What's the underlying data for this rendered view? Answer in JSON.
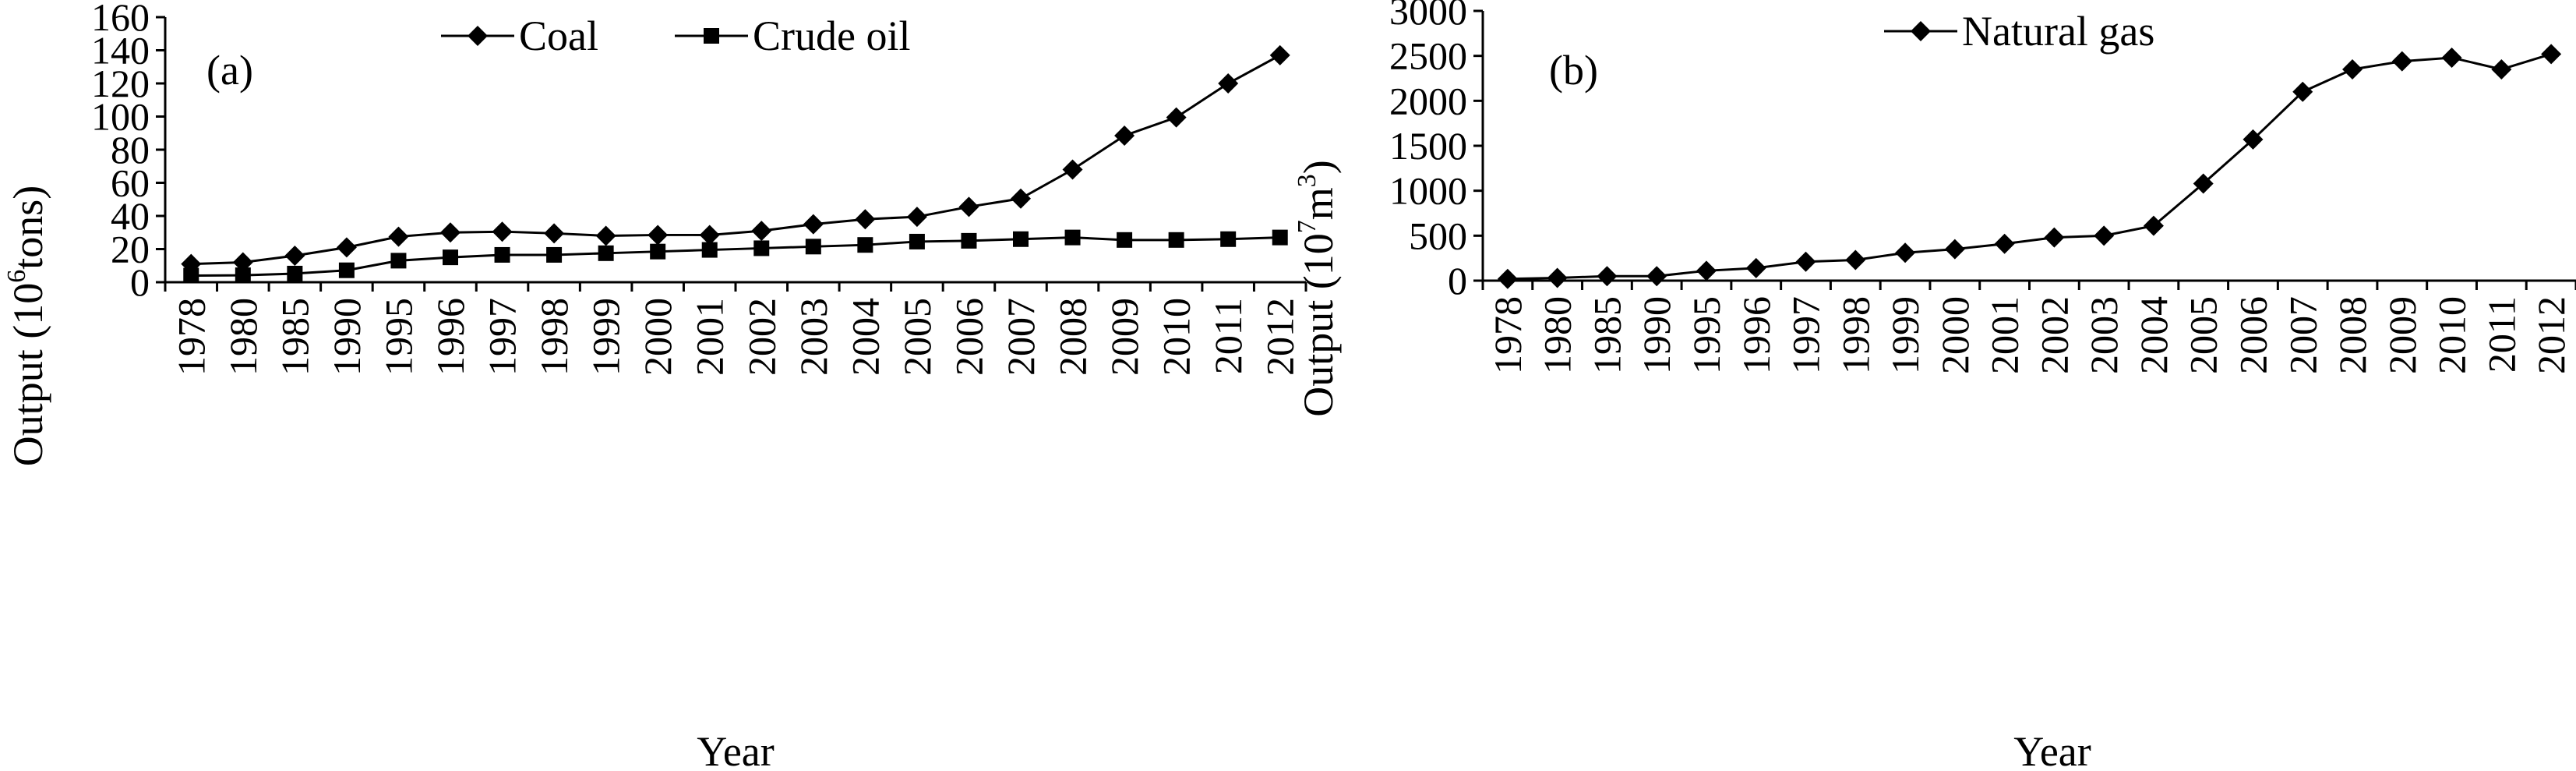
{
  "chart_data": [
    {
      "type": "line",
      "panel_label": "(a)",
      "categories": [
        "1978",
        "1980",
        "1985",
        "1990",
        "1995",
        "1996",
        "1997",
        "1998",
        "1999",
        "2000",
        "2001",
        "2002",
        "2003",
        "2004",
        "2005",
        "2006",
        "2007",
        "2008",
        "2009",
        "2010",
        "2011",
        "2012"
      ],
      "series": [
        {
          "name": "Coal",
          "marker": "diamond",
          "values": [
            11,
            12,
            16,
            21,
            27.5,
            30,
            30.5,
            29.5,
            28,
            28.5,
            28.5,
            31,
            35,
            38,
            39.5,
            45.5,
            50.5,
            68,
            88.5,
            99.5,
            120,
            137
          ]
        },
        {
          "name": "Crude oil",
          "marker": "square",
          "values": [
            4,
            4.2,
            5.2,
            7.2,
            13,
            15,
            16.5,
            16.5,
            17.5,
            18.5,
            19.5,
            20.5,
            21.5,
            22.5,
            24.5,
            25,
            26,
            27,
            25.5,
            25.5,
            26,
            27
          ]
        }
      ],
      "xlabel": "Year",
      "ylabel_main": "Output  (10",
      "ylabel_sup": "6",
      "ylabel_tail": "tons)",
      "ylim": [
        0,
        160
      ],
      "yticks": [
        "0",
        "20",
        "40",
        "60",
        "80",
        "100",
        "120",
        "140",
        "160"
      ],
      "grid": false,
      "legend": "top"
    },
    {
      "type": "line",
      "panel_label": "(b)",
      "categories": [
        "1978",
        "1980",
        "1985",
        "1990",
        "1995",
        "1996",
        "1997",
        "1998",
        "1999",
        "2000",
        "2001",
        "2002",
        "2003",
        "2004",
        "2005",
        "2006",
        "2007",
        "2008",
        "2009",
        "2010",
        "2011",
        "2012"
      ],
      "series": [
        {
          "name": "Natural gas",
          "marker": "diamond",
          "values": [
            20,
            30,
            50,
            50,
            110,
            140,
            210,
            230,
            310,
            350,
            410,
            480,
            500,
            610,
            1080,
            1570,
            2100,
            2350,
            2440,
            2480,
            2350,
            2520
          ]
        }
      ],
      "xlabel": "Year",
      "ylabel_main": "Output  (10",
      "ylabel_sup": "7",
      "ylabel_tail": "m",
      "ylabel_sup2": "3",
      "ylabel_end": ")",
      "ylim": [
        0,
        3000
      ],
      "yticks": [
        "0",
        "500",
        "1000",
        "1500",
        "2000",
        "2500",
        "3000"
      ],
      "grid": false,
      "legend": "top"
    }
  ]
}
